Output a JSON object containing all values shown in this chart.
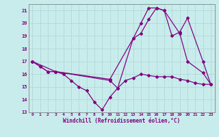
{
  "bg_color": "#c8ecec",
  "line_color": "#800080",
  "grid_color": "#b0d8d8",
  "xlim": [
    -0.5,
    23.5
  ],
  "ylim": [
    13,
    21.5
  ],
  "yticks": [
    13,
    14,
    15,
    16,
    17,
    18,
    19,
    20,
    21
  ],
  "xticks": [
    0,
    1,
    2,
    3,
    4,
    5,
    6,
    7,
    8,
    9,
    10,
    11,
    12,
    13,
    14,
    15,
    16,
    17,
    18,
    19,
    20,
    21,
    22,
    23
  ],
  "xlabel": "Windchill (Refroidissement éolien,°C)",
  "line1_x": [
    0,
    1,
    2,
    3,
    4,
    5,
    6,
    7,
    8,
    9,
    10,
    11,
    12,
    13,
    14,
    15,
    16,
    17,
    18,
    19,
    20,
    21,
    22,
    23
  ],
  "line1_y": [
    17.0,
    16.6,
    16.2,
    16.2,
    16.0,
    15.5,
    15.0,
    14.7,
    13.8,
    13.2,
    14.2,
    14.9,
    15.5,
    15.7,
    16.0,
    15.9,
    15.8,
    15.8,
    15.8,
    15.6,
    15.5,
    15.3,
    15.2,
    15.2
  ],
  "line2_x": [
    0,
    1,
    2,
    3,
    10,
    11,
    13,
    14,
    15,
    16,
    17,
    19,
    20,
    22,
    23
  ],
  "line2_y": [
    17.0,
    16.6,
    16.2,
    16.2,
    15.5,
    14.9,
    18.8,
    20.0,
    21.2,
    21.2,
    21.0,
    19.2,
    17.0,
    16.1,
    15.2
  ],
  "line3_x": [
    0,
    3,
    10,
    13,
    14,
    15,
    16,
    17,
    18,
    19,
    20,
    22,
    23
  ],
  "line3_y": [
    17.0,
    16.2,
    15.6,
    18.8,
    19.2,
    20.3,
    21.2,
    21.0,
    19.0,
    19.3,
    20.4,
    17.0,
    15.2
  ]
}
